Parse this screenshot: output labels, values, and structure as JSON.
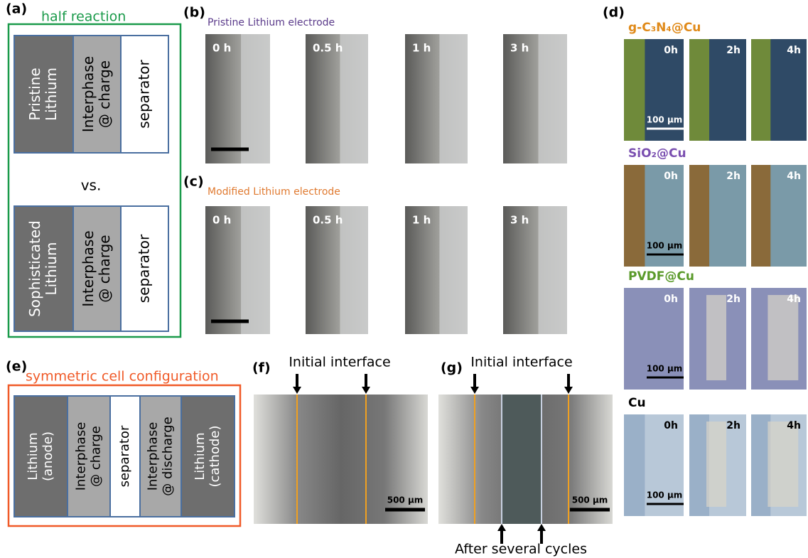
{
  "panel_a": {
    "label": "(a)",
    "title": "half reaction",
    "top_blocks": [
      [
        "Pristine",
        "Lithium"
      ],
      [
        "Interphase",
        "@ charge"
      ],
      [
        "separator"
      ]
    ],
    "vs": "vs.",
    "bottom_blocks": [
      [
        "Sophisticated",
        "Lithium"
      ],
      [
        "Interphase",
        "@ charge"
      ],
      [
        "separator"
      ]
    ]
  },
  "panel_b": {
    "label": "(b)",
    "title": "Pristine Lithium electrode",
    "times": [
      "0 h",
      "0.5 h",
      "1 h",
      "3 h"
    ]
  },
  "panel_c": {
    "label": "(c)",
    "title": "Modified Lithium electrode",
    "times": [
      "0 h",
      "0.5 h",
      "1 h",
      "3 h"
    ]
  },
  "panel_d": {
    "label": "(d)",
    "times": [
      "0h",
      "2h",
      "4h"
    ],
    "scale": "100 µm",
    "rows": [
      "g-C₃N₄@Cu",
      "SiO₂@Cu",
      "PVDF@Cu",
      "Cu"
    ]
  },
  "panel_e": {
    "label": "(e)",
    "title": "symmetric cell configuration",
    "blocks": [
      [
        "Lithium",
        "(anode)"
      ],
      [
        "Interphase",
        "@ charge"
      ],
      [
        "separator"
      ],
      [
        "Interphase",
        "@ discharge"
      ],
      [
        "Lithium",
        "(cathode)"
      ]
    ]
  },
  "panel_f": {
    "label": "(f)",
    "annotation": "Initial interface",
    "scale": "500 µm"
  },
  "panel_g": {
    "label": "(g)",
    "annotation": "Initial interface",
    "annotation_bottom": "After several cycles",
    "scale": "500 µm"
  }
}
